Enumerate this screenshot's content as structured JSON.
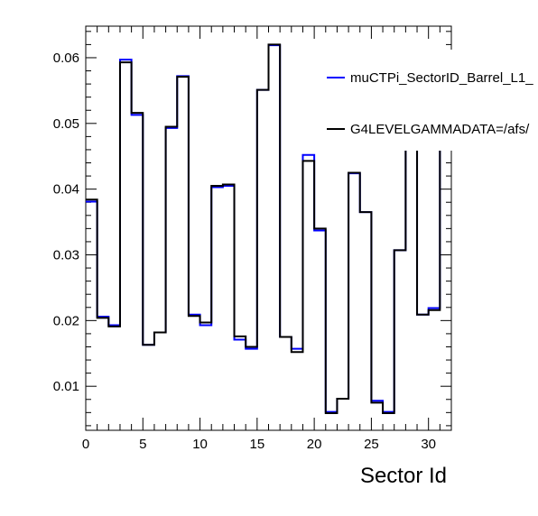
{
  "chart_data": {
    "type": "line",
    "title": "",
    "xlabel": "Sector Id",
    "ylabel": "",
    "xlim": [
      0,
      32
    ],
    "ylim": [
      0.0033,
      0.0648
    ],
    "x_ticks": [
      0,
      5,
      10,
      15,
      20,
      25,
      30
    ],
    "x_tick_labels": [
      "0",
      "5",
      "10",
      "15",
      "20",
      "25",
      "30"
    ],
    "y_ticks": [
      0.01,
      0.02,
      0.03,
      0.04,
      0.05,
      0.06
    ],
    "y_tick_labels": [
      "0.01",
      "0.02",
      "0.03",
      "0.04",
      "0.05",
      "0.06"
    ],
    "grid": false,
    "legend_position": "top-right",
    "bin_edges_start": 0,
    "bin_width": 1,
    "series": [
      {
        "name": "muCTPi_SectorID_Barrel_L1_",
        "color": "#0000ff",
        "values": [
          0.0381,
          0.0206,
          0.0193,
          0.0597,
          0.0513,
          0.0163,
          0.0182,
          0.0493,
          0.0572,
          0.0209,
          0.0193,
          0.0403,
          0.0405,
          0.0171,
          0.0157,
          0.0551,
          0.0619,
          0.0175,
          0.0157,
          0.0452,
          0.0337,
          0.0061,
          0.0081,
          0.0424,
          0.0365,
          0.0078,
          0.0061,
          0.0307,
          0.046,
          0.0209,
          0.0219,
          0.0603
        ]
      },
      {
        "name": "G4LEVELGAMMADATA=/afs/",
        "color": "#000000",
        "values": [
          0.0384,
          0.0204,
          0.0191,
          0.0593,
          0.0516,
          0.0163,
          0.0182,
          0.0495,
          0.0571,
          0.0207,
          0.0197,
          0.0405,
          0.0407,
          0.0176,
          0.016,
          0.0551,
          0.062,
          0.0175,
          0.0152,
          0.0443,
          0.034,
          0.0059,
          0.0081,
          0.0425,
          0.0365,
          0.0075,
          0.0059,
          0.0307,
          0.046,
          0.0209,
          0.0216,
          0.0598
        ]
      }
    ]
  }
}
